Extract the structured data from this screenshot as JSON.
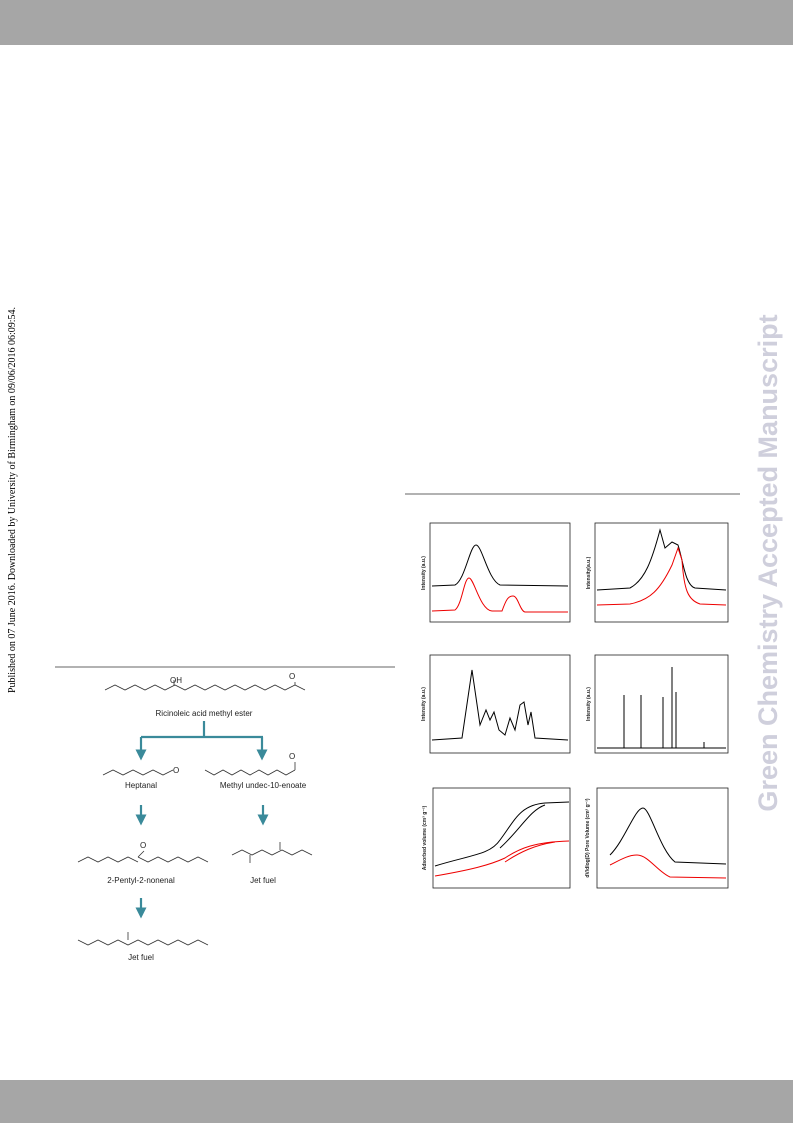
{
  "side_note": "Published on 07 June 2016. Downloaded by University of Birmingham on 09/06/2016 06:09:54.",
  "watermark": "Green Chemistry Accepted Manuscript",
  "scheme": {
    "atoms": [
      "OH",
      "O",
      "O",
      "O",
      "O"
    ],
    "labels": [
      "Ricinoleic acid methyl ester",
      "Heptanal",
      "Methyl undec-10-enoate",
      "2-Pentyl-2-nonenal",
      "Jet fuel",
      "Jet fuel"
    ]
  },
  "figure": {
    "axis_labels": [
      "Intensity (a.u.)",
      "Intensity(a.u.)",
      "Intensity (a.u.)",
      "Intensity (a.u.)",
      "Adsorbed  volume (cm³ g⁻¹)",
      "dV/dlog(D) Pore  Volume (cm³ g⁻¹)"
    ]
  }
}
